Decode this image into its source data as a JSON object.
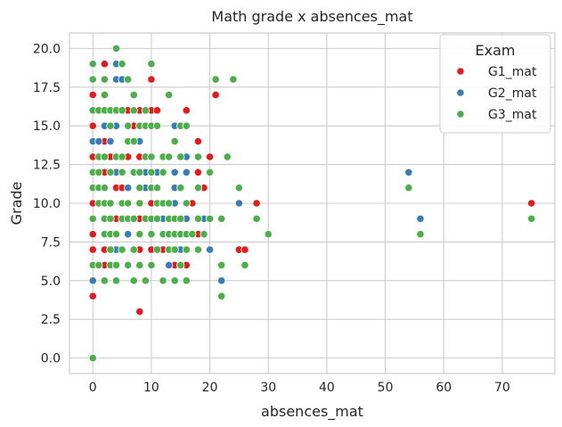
{
  "chart_data": {
    "type": "scatter",
    "title": "Math grade x absences_mat",
    "xlabel": "absences_mat",
    "ylabel": "Grade",
    "xlim": [
      -4,
      79
    ],
    "ylim": [
      -1,
      21
    ],
    "xticks": [
      0,
      10,
      20,
      30,
      40,
      50,
      60,
      70
    ],
    "xtick_labels": [
      "0",
      "10",
      "20",
      "30",
      "40",
      "50",
      "60",
      "70"
    ],
    "yticks": [
      0,
      2.5,
      5,
      7.5,
      10,
      12.5,
      15,
      17.5,
      20
    ],
    "ytick_labels": [
      "0.0",
      "2.5",
      "5.0",
      "7.5",
      "10.0",
      "12.5",
      "15.0",
      "17.5",
      "20.0"
    ],
    "grid": true,
    "legend": {
      "title": "Exam",
      "placement": "top-right"
    },
    "series": [
      {
        "name": "G1_mat",
        "color": "#e41a1c",
        "points": [
          [
            0,
            4
          ],
          [
            0,
            7
          ],
          [
            0,
            8
          ],
          [
            0,
            10
          ],
          [
            0,
            13
          ],
          [
            0,
            14
          ],
          [
            0,
            15
          ],
          [
            0,
            17
          ],
          [
            0,
            19
          ],
          [
            2,
            6
          ],
          [
            2,
            7
          ],
          [
            2,
            12
          ],
          [
            2,
            14
          ],
          [
            2,
            15
          ],
          [
            2,
            19
          ],
          [
            3,
            13
          ],
          [
            4,
            9
          ],
          [
            4,
            11
          ],
          [
            4,
            15
          ],
          [
            4,
            19
          ],
          [
            5,
            11
          ],
          [
            6,
            10
          ],
          [
            6,
            13
          ],
          [
            6,
            16
          ],
          [
            7,
            12
          ],
          [
            7,
            15
          ],
          [
            8,
            3
          ],
          [
            8,
            7
          ],
          [
            8,
            9
          ],
          [
            8,
            13
          ],
          [
            8,
            16
          ],
          [
            10,
            7
          ],
          [
            10,
            10
          ],
          [
            10,
            16
          ],
          [
            10,
            18
          ],
          [
            11,
            12
          ],
          [
            11,
            16
          ],
          [
            12,
            7
          ],
          [
            12,
            9
          ],
          [
            13,
            8
          ],
          [
            14,
            6
          ],
          [
            14,
            11
          ],
          [
            15,
            6
          ],
          [
            16,
            6
          ],
          [
            16,
            13
          ],
          [
            16,
            16
          ],
          [
            17,
            10
          ],
          [
            18,
            8
          ],
          [
            18,
            12
          ],
          [
            18,
            14
          ],
          [
            19,
            9
          ],
          [
            19,
            11
          ],
          [
            20,
            13
          ],
          [
            21,
            17
          ],
          [
            25,
            7
          ],
          [
            26,
            7
          ],
          [
            28,
            10
          ],
          [
            75,
            10
          ]
        ]
      },
      {
        "name": "G2_mat",
        "color": "#377eb8",
        "points": [
          [
            0,
            5
          ],
          [
            0,
            14
          ],
          [
            1,
            14
          ],
          [
            2,
            15
          ],
          [
            2,
            18
          ],
          [
            3,
            14
          ],
          [
            4,
            7
          ],
          [
            4,
            12
          ],
          [
            4,
            15
          ],
          [
            4,
            18
          ],
          [
            4,
            19
          ],
          [
            5,
            18
          ],
          [
            6,
            8
          ],
          [
            6,
            11
          ],
          [
            7,
            7
          ],
          [
            8,
            14
          ],
          [
            8,
            15
          ],
          [
            9,
            11
          ],
          [
            9,
            12
          ],
          [
            10,
            9
          ],
          [
            11,
            12
          ],
          [
            12,
            9
          ],
          [
            13,
            6
          ],
          [
            13,
            9
          ],
          [
            14,
            10
          ],
          [
            14,
            11
          ],
          [
            14,
            12
          ],
          [
            14,
            15
          ],
          [
            15,
            7
          ],
          [
            16,
            9
          ],
          [
            16,
            12
          ],
          [
            16,
            13
          ],
          [
            19,
            9
          ],
          [
            20,
            7
          ],
          [
            22,
            5
          ],
          [
            25,
            10
          ],
          [
            54,
            12
          ],
          [
            56,
            9
          ]
        ]
      },
      {
        "name": "G3_mat",
        "color": "#4daf4a",
        "points": [
          [
            0,
            0
          ],
          [
            0,
            6
          ],
          [
            0,
            9
          ],
          [
            0,
            11
          ],
          [
            0,
            12
          ],
          [
            0,
            16
          ],
          [
            0,
            18
          ],
          [
            0,
            19
          ],
          [
            1,
            6
          ],
          [
            1,
            10
          ],
          [
            1,
            11
          ],
          [
            1,
            12
          ],
          [
            1,
            13
          ],
          [
            1,
            16
          ],
          [
            2,
            5
          ],
          [
            2,
            8
          ],
          [
            2,
            9
          ],
          [
            2,
            10
          ],
          [
            2,
            11
          ],
          [
            2,
            13
          ],
          [
            2,
            16
          ],
          [
            2,
            17
          ],
          [
            2,
            18
          ],
          [
            3,
            6
          ],
          [
            3,
            7
          ],
          [
            3,
            8
          ],
          [
            3,
            9
          ],
          [
            3,
            10
          ],
          [
            3,
            12
          ],
          [
            3,
            15
          ],
          [
            3,
            16
          ],
          [
            4,
            5
          ],
          [
            4,
            6
          ],
          [
            4,
            8
          ],
          [
            4,
            13
          ],
          [
            4,
            16
          ],
          [
            4,
            20
          ],
          [
            5,
            7
          ],
          [
            5,
            9
          ],
          [
            5,
            10
          ],
          [
            5,
            12
          ],
          [
            5,
            13
          ],
          [
            5,
            16
          ],
          [
            5,
            19
          ],
          [
            6,
            6
          ],
          [
            6,
            9
          ],
          [
            6,
            10
          ],
          [
            6,
            14
          ],
          [
            6,
            15
          ],
          [
            6,
            18
          ],
          [
            7,
            5
          ],
          [
            7,
            7
          ],
          [
            7,
            9
          ],
          [
            7,
            12
          ],
          [
            7,
            14
          ],
          [
            7,
            16
          ],
          [
            7,
            17
          ],
          [
            8,
            6
          ],
          [
            8,
            8
          ],
          [
            8,
            10
          ],
          [
            8,
            11
          ],
          [
            8,
            12
          ],
          [
            8,
            15
          ],
          [
            9,
            5
          ],
          [
            9,
            9
          ],
          [
            9,
            13
          ],
          [
            9,
            15
          ],
          [
            9,
            16
          ],
          [
            10,
            6
          ],
          [
            10,
            8
          ],
          [
            10,
            9
          ],
          [
            10,
            11
          ],
          [
            10,
            12
          ],
          [
            10,
            13
          ],
          [
            10,
            15
          ],
          [
            10,
            19
          ],
          [
            11,
            7
          ],
          [
            11,
            9
          ],
          [
            11,
            10
          ],
          [
            11,
            11
          ],
          [
            11,
            15
          ],
          [
            12,
            5
          ],
          [
            12,
            8
          ],
          [
            12,
            10
          ],
          [
            12,
            12
          ],
          [
            12,
            13
          ],
          [
            13,
            7
          ],
          [
            13,
            8
          ],
          [
            13,
            9
          ],
          [
            13,
            10
          ],
          [
            13,
            13
          ],
          [
            13,
            17
          ],
          [
            14,
            5
          ],
          [
            14,
            7
          ],
          [
            14,
            8
          ],
          [
            14,
            9
          ],
          [
            14,
            14
          ],
          [
            15,
            6
          ],
          [
            15,
            8
          ],
          [
            15,
            9
          ],
          [
            15,
            11
          ],
          [
            15,
            13
          ],
          [
            15,
            15
          ],
          [
            16,
            5
          ],
          [
            16,
            7
          ],
          [
            16,
            8
          ],
          [
            16,
            10
          ],
          [
            16,
            15
          ],
          [
            17,
            8
          ],
          [
            18,
            7
          ],
          [
            18,
            9
          ],
          [
            18,
            11
          ],
          [
            18,
            13
          ],
          [
            19,
            8
          ],
          [
            20,
            9
          ],
          [
            20,
            12
          ],
          [
            21,
            18
          ],
          [
            22,
            4
          ],
          [
            22,
            6
          ],
          [
            22,
            9
          ],
          [
            23,
            13
          ],
          [
            24,
            18
          ],
          [
            25,
            11
          ],
          [
            26,
            6
          ],
          [
            28,
            9
          ],
          [
            30,
            8
          ],
          [
            54,
            11
          ],
          [
            56,
            8
          ],
          [
            75,
            9
          ]
        ]
      }
    ]
  }
}
